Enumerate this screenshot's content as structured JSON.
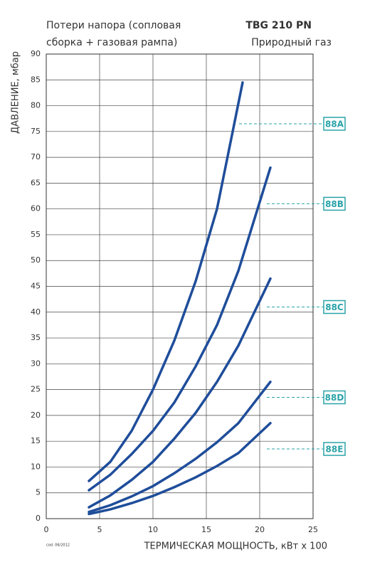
{
  "chart_data": {
    "type": "line",
    "title": [
      "Потери напора (сопловая",
      "сборка + газовая рампа)"
    ],
    "subtitle": [
      "TBG 210 PN",
      "Природный газ"
    ],
    "y_label": "ДАВЛЕНИЕ, мбар",
    "x_label": "ТЕРМИЧЕСКАЯ МОЩНОСТЬ, кВт x 100",
    "footnote": "cod. 06/2012",
    "xlim": [
      0,
      25
    ],
    "xticks": [
      0,
      5,
      10,
      15,
      20,
      25
    ],
    "ylim": [
      0,
      90
    ],
    "yticks": [
      0,
      5,
      10,
      15,
      20,
      25,
      30,
      35,
      40,
      45,
      50,
      55,
      60,
      65,
      70,
      75,
      80,
      85,
      90
    ],
    "grid": true,
    "label_color": "#2aa3a8",
    "series": [
      {
        "name": "88A",
        "color": "#1f4d9a",
        "label_y": 76.5,
        "x": [
          4,
          6,
          8,
          10,
          12,
          14,
          16,
          18.4
        ],
        "values": [
          7.3,
          11,
          17,
          25,
          34.5,
          46,
          60,
          84.5
        ]
      },
      {
        "name": "88B",
        "color": "#1f4d9a",
        "label_y": 61,
        "x": [
          4,
          6,
          8,
          10,
          12,
          14,
          16,
          18,
          21
        ],
        "values": [
          5.5,
          8.5,
          12.5,
          17,
          22.5,
          29.5,
          37.5,
          48,
          68
        ]
      },
      {
        "name": "88C",
        "color": "#1f4d9a",
        "label_y": 41,
        "x": [
          4,
          6,
          8,
          10,
          12,
          14,
          16,
          18,
          21
        ],
        "values": [
          2.2,
          4.5,
          7.5,
          11,
          15.5,
          20.5,
          26.5,
          33.5,
          46.5
        ]
      },
      {
        "name": "88D",
        "color": "#1f4d9a",
        "label_y": 23.5,
        "x": [
          4,
          6,
          8,
          10,
          12,
          14,
          16,
          18,
          21
        ],
        "values": [
          1.3,
          2.6,
          4.3,
          6.3,
          8.8,
          11.6,
          14.8,
          18.5,
          26.5
        ]
      },
      {
        "name": "88E",
        "color": "#1f4d9a",
        "label_y": 13.5,
        "x": [
          4,
          6,
          8,
          10,
          12,
          14,
          16,
          18,
          21
        ],
        "values": [
          0.9,
          1.8,
          3,
          4.4,
          6.1,
          8,
          10.2,
          12.7,
          18.5
        ]
      }
    ]
  }
}
